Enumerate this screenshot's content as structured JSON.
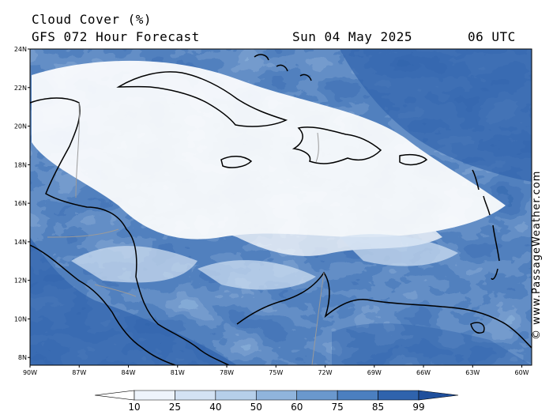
{
  "title": {
    "line1": "Cloud Cover (%)",
    "line2": "GFS 072 Hour Forecast",
    "date": "Sun 04 May 2025",
    "time": "06 UTC"
  },
  "axes": {
    "lat_labels": [
      "24N",
      "22N",
      "20N",
      "18N",
      "16N",
      "14N",
      "12N",
      "10N",
      "8N"
    ],
    "lat_values": [
      24,
      22,
      20,
      18,
      16,
      14,
      12,
      10,
      8
    ],
    "lon_labels": [
      "90W",
      "87W",
      "84W",
      "81W",
      "78W",
      "75W",
      "72W",
      "69W",
      "66W",
      "63W",
      "60W"
    ],
    "lon_values": [
      -90,
      -87,
      -84,
      -81,
      -78,
      -75,
      -72,
      -69,
      -66,
      -63,
      -60
    ],
    "lat_range": [
      7.6,
      24
    ],
    "lon_range": [
      -90,
      -59.4
    ]
  },
  "legend": {
    "levels": [
      "10",
      "25",
      "40",
      "50",
      "60",
      "75",
      "85",
      "99"
    ],
    "colors": [
      "#ffffff",
      "#eef4fb",
      "#d3e2f3",
      "#b6cfea",
      "#90b4dc",
      "#6a98cd",
      "#4b7fc0",
      "#2f63ad",
      "#1f4f9c"
    ]
  },
  "credit": "© www.PassageWeather.com",
  "colors": {
    "clear": "#ffffff",
    "overcast": "#2f63ad",
    "coast": "#000000",
    "border": "#9a9a9a"
  }
}
